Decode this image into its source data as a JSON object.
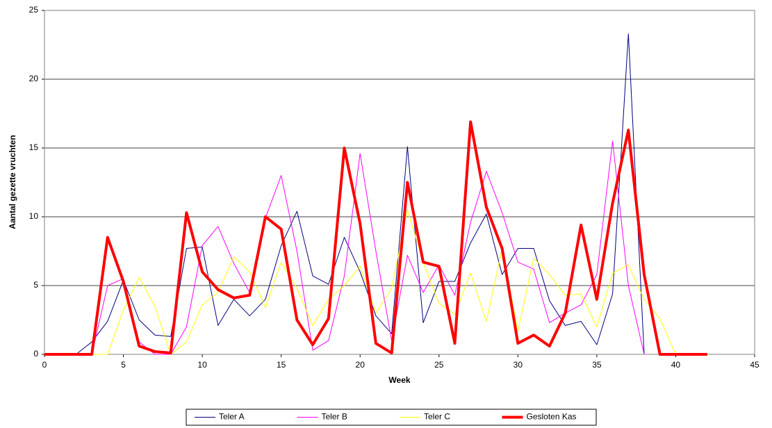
{
  "chart_data": {
    "type": "line",
    "x_label": "Week",
    "y_label": "Aantal gezette vruchten",
    "x": [
      0,
      1,
      2,
      3,
      4,
      5,
      6,
      7,
      8,
      9,
      10,
      11,
      12,
      13,
      14,
      15,
      16,
      17,
      18,
      19,
      20,
      21,
      22,
      23,
      24,
      25,
      26,
      27,
      28,
      29,
      30,
      31,
      32,
      33,
      34,
      35,
      36,
      37,
      38,
      39,
      40,
      41,
      42
    ],
    "series": [
      {
        "name": "Teler A",
        "color": "#000080",
        "width": 1,
        "values": [
          0,
          0,
          0,
          0.9,
          2.4,
          5.4,
          2.5,
          1.4,
          1.3,
          7.7,
          7.8,
          2.1,
          4,
          2.8,
          4,
          7.9,
          10.4,
          5.7,
          5.1,
          8.5,
          6,
          2.8,
          1.5,
          15.1,
          2.3,
          5.3,
          5.3,
          8.1,
          10.2,
          5.8,
          7.7,
          7.7,
          3.9,
          2.1,
          2.4,
          0.7,
          4.4,
          23.3,
          0,
          null,
          null,
          null,
          null
        ]
      },
      {
        "name": "Teler B",
        "color": "#ff00ff",
        "width": 1,
        "values": [
          0,
          0,
          0,
          0,
          5,
          5.5,
          0.9,
          0,
          0,
          2,
          7.9,
          9.3,
          6.6,
          4.5,
          9.9,
          13,
          7.5,
          0.3,
          1,
          5.7,
          14.6,
          7.5,
          1,
          7.2,
          4.5,
          6.5,
          4.3,
          9.6,
          13.3,
          10.3,
          6.7,
          6.2,
          2.3,
          3,
          3.6,
          5.8,
          15.5,
          5,
          0,
          null,
          null,
          null,
          null
        ]
      },
      {
        "name": "Teler C",
        "color": "#ffff00",
        "width": 1,
        "values": [
          0,
          0,
          0,
          0,
          0,
          3.2,
          5.6,
          3.5,
          0,
          0.9,
          3.6,
          4.5,
          7.1,
          6,
          3.4,
          6.7,
          4.8,
          2.1,
          4,
          5,
          6.4,
          3,
          4.8,
          10.5,
          6.7,
          3.7,
          2.9,
          5.9,
          2.4,
          7.7,
          1.7,
          7,
          5.8,
          4.3,
          4.4,
          2,
          5.9,
          6.5,
          4,
          2.6,
          0,
          null,
          null
        ]
      },
      {
        "name": "Gesloten Kas",
        "color": "#ff0000",
        "width": 4,
        "values": [
          0,
          0,
          0,
          0,
          8.5,
          5.3,
          0.6,
          0.2,
          0.1,
          10.3,
          6,
          4.7,
          4.1,
          4.3,
          10,
          9.1,
          2.5,
          0.7,
          2.6,
          15,
          9.5,
          0.8,
          0.1,
          12.5,
          6.7,
          6.4,
          0.8,
          16.9,
          10.7,
          7.7,
          0.8,
          1.4,
          0.6,
          3,
          9.4,
          4,
          11,
          16.3,
          5.8,
          0,
          0,
          0,
          0
        ]
      }
    ],
    "xlim": [
      0,
      45
    ],
    "xticks": [
      0,
      5,
      10,
      15,
      20,
      25,
      30,
      35,
      40,
      45
    ],
    "ylim": [
      0,
      25
    ],
    "yticks": [
      0,
      5,
      10,
      15,
      20,
      25
    ],
    "grid": true,
    "legend": "bottom"
  }
}
